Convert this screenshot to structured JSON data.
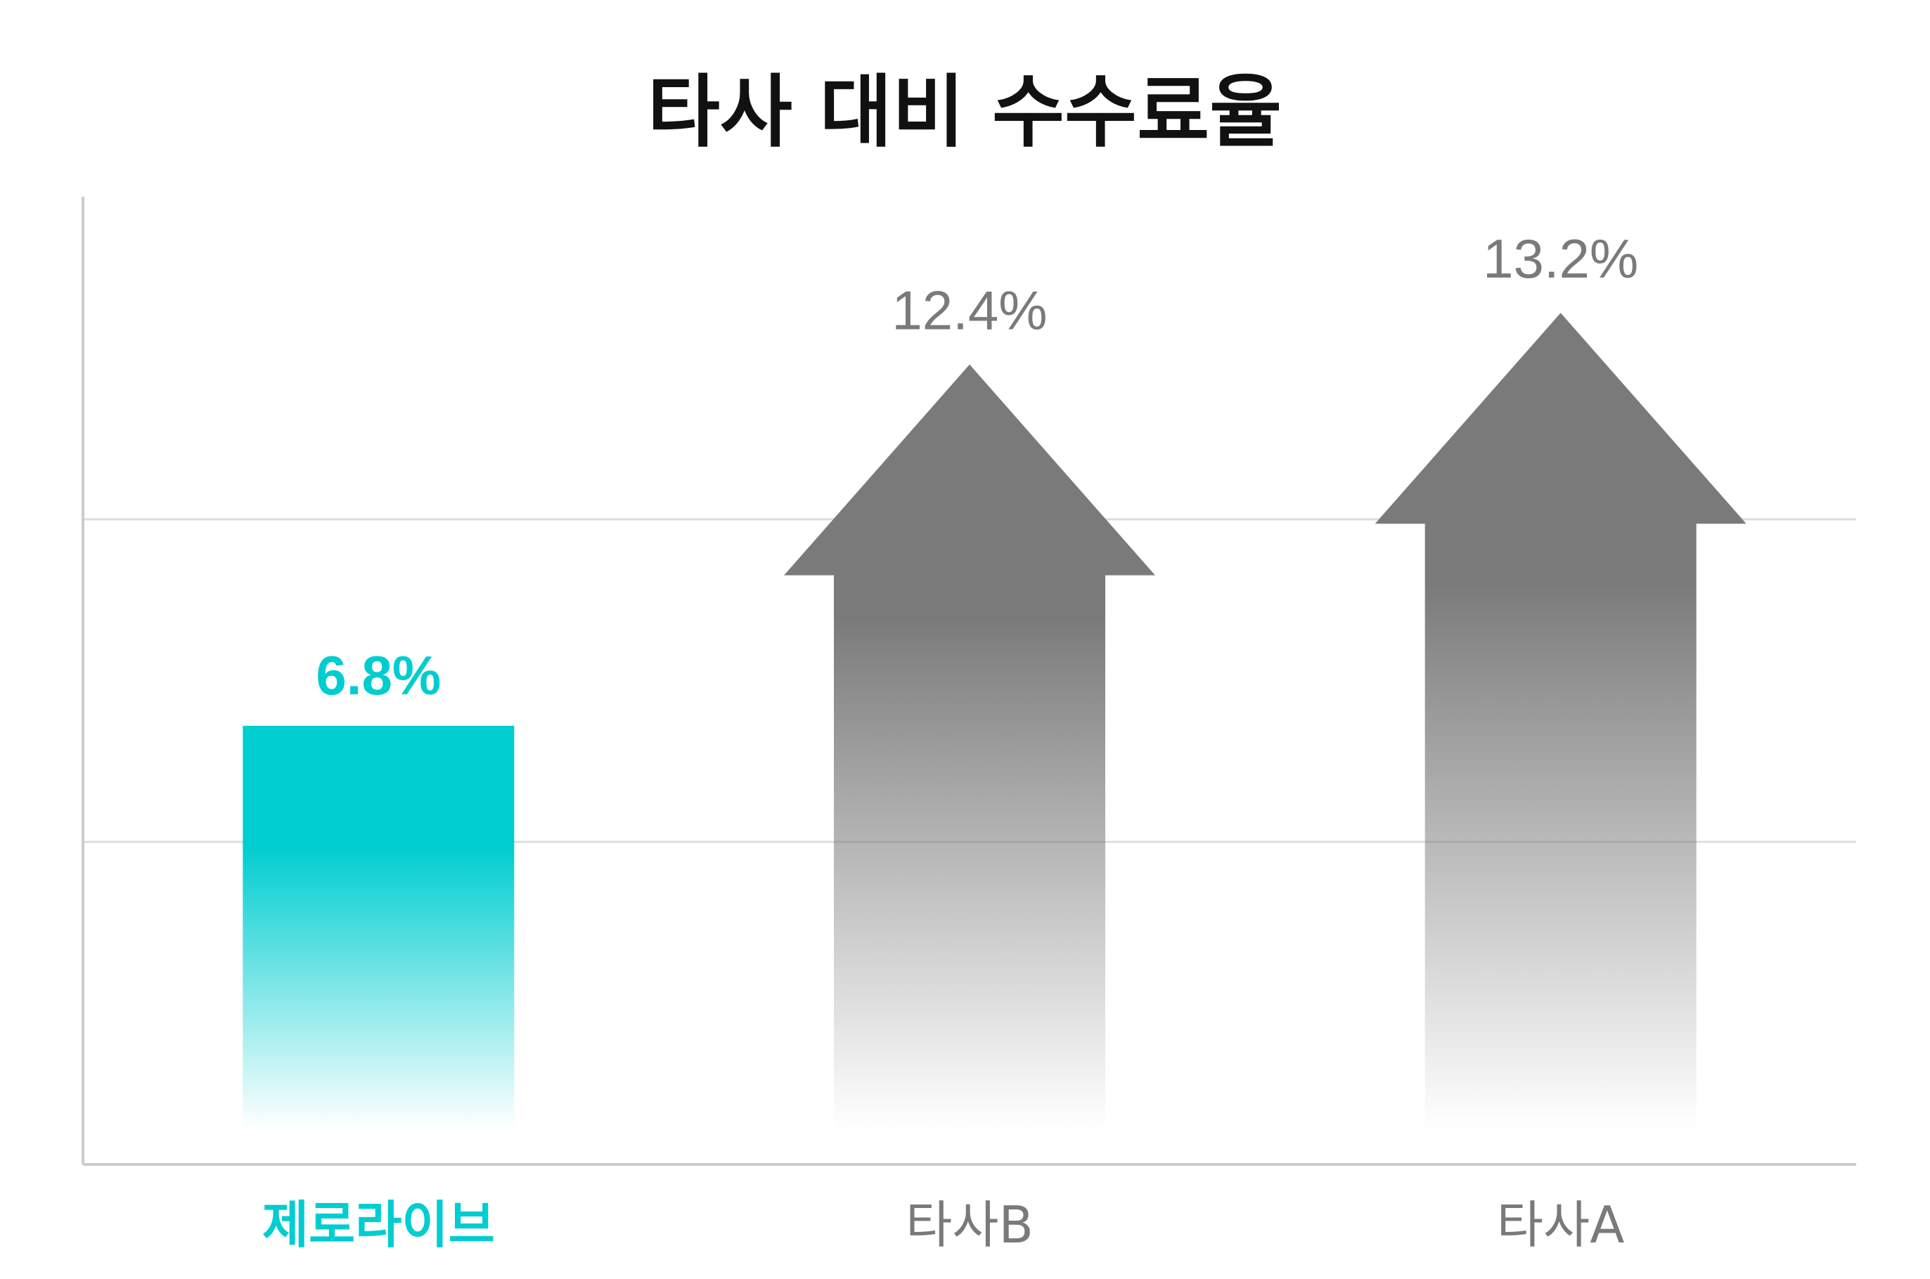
{
  "chart_data": {
    "type": "bar",
    "title": "타사 대비 수수료율",
    "categories": [
      "제로라이브",
      "타사B",
      "타사A"
    ],
    "values": [
      6.8,
      12.4,
      13.2
    ],
    "value_labels": [
      "6.8%",
      "12.4%",
      "13.2%"
    ],
    "ylim": [
      0,
      15
    ],
    "grid": true,
    "highlight_category": "제로라이브",
    "colors": {
      "highlight": "#00CDD0",
      "others": "#7A7A7A",
      "axis": "#CCCCCC",
      "grid": "#DDDDDD"
    },
    "mark_shapes": [
      "bar",
      "arrow",
      "arrow"
    ]
  }
}
